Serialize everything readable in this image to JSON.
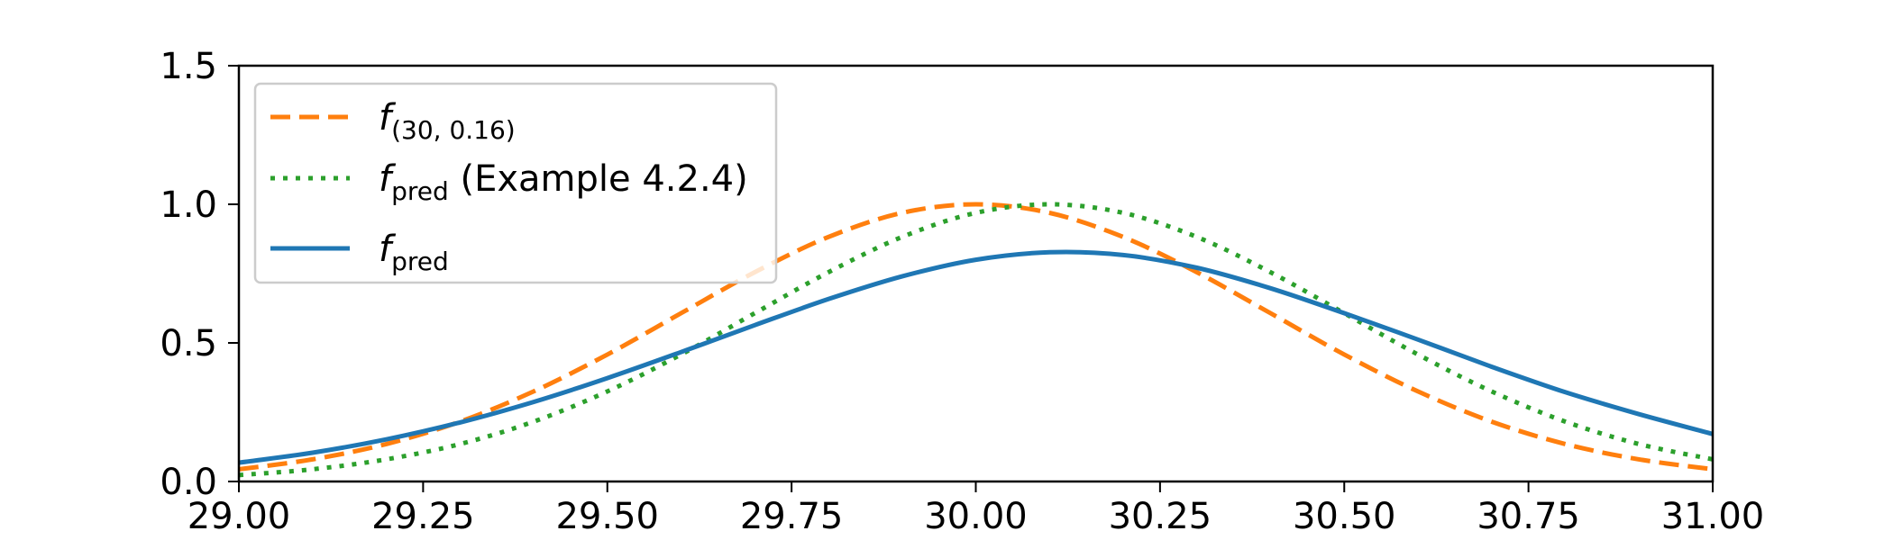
{
  "chart_data": {
    "type": "line",
    "title": "",
    "xlabel": "",
    "ylabel": "",
    "xlim": [
      29.0,
      31.0
    ],
    "ylim": [
      0.0,
      1.5
    ],
    "grid": false,
    "legend_placement": "upper-left",
    "x_ticks": [
      "29.00",
      "29.25",
      "29.50",
      "29.75",
      "30.00",
      "30.25",
      "30.50",
      "30.75",
      "31.00"
    ],
    "y_ticks": [
      "0.0",
      "0.5",
      "1.0",
      "1.5"
    ],
    "series": [
      {
        "key": "f_30_016",
        "legend_main": "f",
        "legend_sub": "(30, 0.16)",
        "legend_suffix": "",
        "color": "#ff7f0e",
        "style": "dashed",
        "x": [
          29.0,
          29.1,
          29.2,
          29.3,
          29.4,
          29.5,
          29.6,
          29.7,
          29.8,
          29.9,
          30.0,
          30.1,
          30.2,
          30.3,
          30.4,
          30.5,
          30.6,
          30.7,
          30.8,
          30.9,
          31.0
        ],
        "y": [
          0.044,
          0.08,
          0.135,
          0.216,
          0.325,
          0.458,
          0.607,
          0.755,
          0.882,
          0.969,
          1.0,
          0.969,
          0.882,
          0.755,
          0.607,
          0.458,
          0.325,
          0.216,
          0.135,
          0.08,
          0.044
        ]
      },
      {
        "key": "f_pred_example",
        "legend_main": "f",
        "legend_sub": "pred",
        "legend_suffix": " (Example 4.2.4)",
        "color": "#2ca02c",
        "style": "dotted",
        "x": [
          29.0,
          29.1,
          29.2,
          29.3,
          29.4,
          29.5,
          29.6,
          29.7,
          29.8,
          29.9,
          30.0,
          30.1,
          30.2,
          30.3,
          30.4,
          30.5,
          30.6,
          30.7,
          30.8,
          30.9,
          31.0
        ],
        "y": [
          0.023,
          0.044,
          0.08,
          0.135,
          0.216,
          0.325,
          0.458,
          0.607,
          0.755,
          0.882,
          0.969,
          1.0,
          0.969,
          0.882,
          0.755,
          0.607,
          0.458,
          0.325,
          0.216,
          0.135,
          0.08
        ]
      },
      {
        "key": "f_pred",
        "legend_main": "f",
        "legend_sub": "pred",
        "legend_suffix": "",
        "color": "#1f77b4",
        "style": "solid",
        "x": [
          29.0,
          29.1,
          29.2,
          29.3,
          29.4,
          29.5,
          29.6,
          29.7,
          29.8,
          29.9,
          30.0,
          30.1,
          30.2,
          30.3,
          30.4,
          30.5,
          30.6,
          30.7,
          30.8,
          30.9,
          31.0
        ],
        "y": [
          0.068,
          0.104,
          0.152,
          0.213,
          0.287,
          0.373,
          0.467,
          0.564,
          0.658,
          0.74,
          0.8,
          0.827,
          0.817,
          0.771,
          0.697,
          0.607,
          0.512,
          0.414,
          0.322,
          0.243,
          0.171
        ]
      }
    ]
  }
}
